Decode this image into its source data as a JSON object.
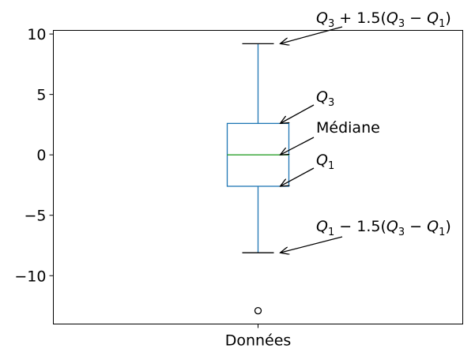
{
  "chart_data": {
    "type": "box",
    "title": "",
    "xlabel": "",
    "ylabel": "",
    "categories": [
      "Données"
    ],
    "ylim": [
      -14.0,
      10.3
    ],
    "yticks": [
      10,
      5,
      0,
      -5,
      -10
    ],
    "ytick_labels": [
      "10",
      "5",
      "0",
      "−5",
      "−10"
    ],
    "grid": false,
    "box": {
      "whisker_high": 9.2,
      "q3": 2.6,
      "median": 0.0,
      "q1": -2.6,
      "whisker_low": -8.1,
      "outliers": [
        -12.9
      ]
    },
    "colors": {
      "box": "#1f77b4",
      "median": "#2ca02c",
      "caps": "#000000",
      "outlier": "#000000"
    },
    "annotations": {
      "upper_fence": {
        "label": "Q3 + 1.5(Q3 − Q1)"
      },
      "q3": {
        "label": "Q3"
      },
      "median": {
        "label": "Médiane"
      },
      "q1": {
        "label": "Q1"
      },
      "lower_fence": {
        "label": "Q1 − 1.5(Q3 − Q1)"
      }
    }
  }
}
